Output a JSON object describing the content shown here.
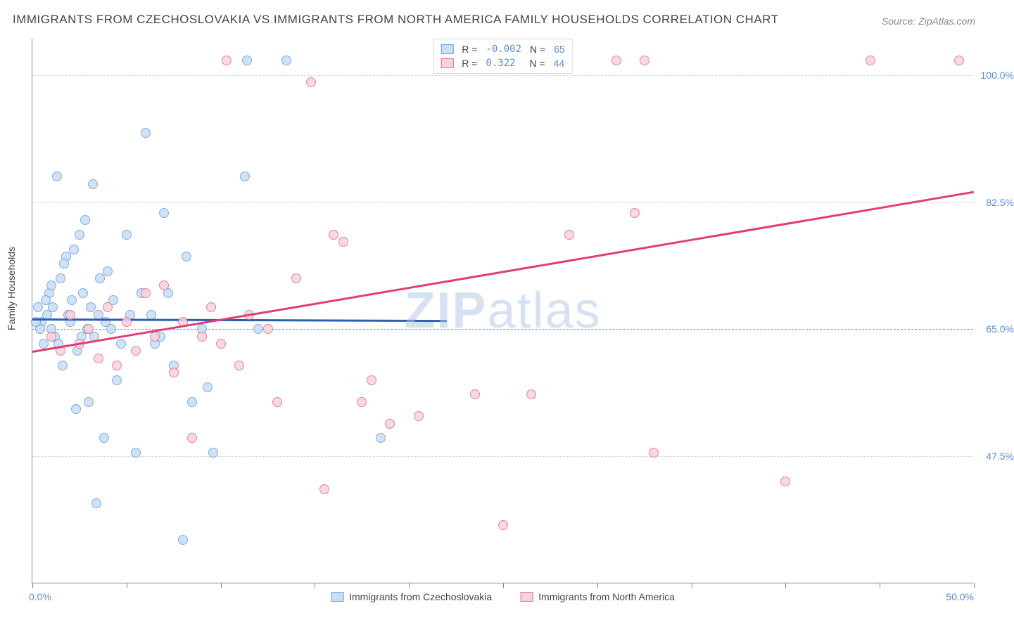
{
  "title": "IMMIGRANTS FROM CZECHOSLOVAKIA VS IMMIGRANTS FROM NORTH AMERICA FAMILY HOUSEHOLDS CORRELATION CHART",
  "source": "Source: ZipAtlas.com",
  "ylabel": "Family Households",
  "watermark_a": "ZIP",
  "watermark_b": "atlas",
  "chart": {
    "type": "scatter",
    "xlim": [
      0,
      50
    ],
    "ylim": [
      30,
      105
    ],
    "ytick_labels": [
      "47.5%",
      "65.0%",
      "82.5%",
      "100.0%"
    ],
    "ytick_values": [
      47.5,
      65.0,
      82.5,
      100.0
    ],
    "xtick_values": [
      0,
      5,
      10,
      15,
      20,
      25,
      30,
      35,
      40,
      45,
      50
    ],
    "xtick_labels_shown": {
      "0": "0.0%",
      "50": "50.0%"
    },
    "background_color": "#ffffff",
    "grid_color": "#cccccc",
    "axis_color": "#888888",
    "marker_radius": 7,
    "series": [
      {
        "name": "Immigrants from Czechoslovakia",
        "fill": "#c9ddf3",
        "stroke": "#6a9edb",
        "R": "-0.002",
        "N": "65",
        "regression": {
          "x1": 0,
          "y1": 66.5,
          "x2": 22,
          "y2": 66.3,
          "color": "#2b5fb5",
          "width": 2.5
        },
        "points": [
          [
            0.5,
            66
          ],
          [
            0.6,
            63
          ],
          [
            0.8,
            67
          ],
          [
            0.9,
            70
          ],
          [
            1.0,
            65
          ],
          [
            1.1,
            68
          ],
          [
            1.2,
            64
          ],
          [
            1.3,
            86
          ],
          [
            1.5,
            72
          ],
          [
            1.6,
            60
          ],
          [
            1.8,
            75
          ],
          [
            2.0,
            66
          ],
          [
            2.1,
            69
          ],
          [
            2.2,
            76
          ],
          [
            2.3,
            54
          ],
          [
            2.5,
            78
          ],
          [
            2.6,
            64
          ],
          [
            2.8,
            80
          ],
          [
            3.0,
            55
          ],
          [
            3.2,
            85
          ],
          [
            3.4,
            41
          ],
          [
            3.5,
            67
          ],
          [
            3.8,
            50
          ],
          [
            4.0,
            73
          ],
          [
            4.2,
            65
          ],
          [
            4.5,
            58
          ],
          [
            5.0,
            78
          ],
          [
            5.5,
            48
          ],
          [
            6.0,
            92
          ],
          [
            6.3,
            67
          ],
          [
            6.5,
            63
          ],
          [
            7.0,
            81
          ],
          [
            7.2,
            70
          ],
          [
            7.5,
            60
          ],
          [
            8.0,
            36
          ],
          [
            8.2,
            75
          ],
          [
            8.5,
            55
          ],
          [
            9.0,
            65
          ],
          [
            9.3,
            57
          ],
          [
            9.6,
            48
          ],
          [
            11.3,
            86
          ],
          [
            11.4,
            102
          ],
          [
            12.0,
            65
          ],
          [
            13.5,
            102
          ],
          [
            18.5,
            50
          ],
          [
            0.7,
            69
          ],
          [
            1.0,
            71
          ],
          [
            1.4,
            63
          ],
          [
            1.7,
            74
          ],
          [
            1.9,
            67
          ],
          [
            2.4,
            62
          ],
          [
            2.7,
            70
          ],
          [
            2.9,
            65
          ],
          [
            3.1,
            68
          ],
          [
            3.3,
            64
          ],
          [
            3.6,
            72
          ],
          [
            3.9,
            66
          ],
          [
            4.3,
            69
          ],
          [
            4.7,
            63
          ],
          [
            5.2,
            67
          ],
          [
            5.8,
            70
          ],
          [
            6.8,
            64
          ],
          [
            0.4,
            65
          ],
          [
            0.3,
            68
          ],
          [
            0.2,
            66
          ]
        ]
      },
      {
        "name": "Immigrants from North America",
        "fill": "#f5d3dc",
        "stroke": "#e56b8f",
        "R": "0.322",
        "N": "44",
        "regression": {
          "x1": 0,
          "y1": 62,
          "x2": 50,
          "y2": 84,
          "color": "#e13d74",
          "width": 2.5
        },
        "points": [
          [
            1.0,
            64
          ],
          [
            1.5,
            62
          ],
          [
            2.0,
            67
          ],
          [
            2.5,
            63
          ],
          [
            3.0,
            65
          ],
          [
            3.5,
            61
          ],
          [
            4.0,
            68
          ],
          [
            4.5,
            60
          ],
          [
            5.0,
            66
          ],
          [
            5.5,
            62
          ],
          [
            6.0,
            70
          ],
          [
            6.5,
            64
          ],
          [
            7.0,
            71
          ],
          [
            7.5,
            59
          ],
          [
            8.0,
            66
          ],
          [
            8.5,
            50
          ],
          [
            9.0,
            64
          ],
          [
            9.5,
            68
          ],
          [
            10.3,
            102
          ],
          [
            11.0,
            60
          ],
          [
            12.5,
            65
          ],
          [
            13.0,
            55
          ],
          [
            14.0,
            72
          ],
          [
            14.8,
            99
          ],
          [
            15.5,
            43
          ],
          [
            16.0,
            78
          ],
          [
            16.5,
            77
          ],
          [
            17.5,
            55
          ],
          [
            18.0,
            58
          ],
          [
            19.0,
            52
          ],
          [
            20.5,
            53
          ],
          [
            23.5,
            56
          ],
          [
            25.0,
            38
          ],
          [
            26.5,
            56
          ],
          [
            28.5,
            78
          ],
          [
            31.0,
            102
          ],
          [
            32.0,
            81
          ],
          [
            32.5,
            102
          ],
          [
            33.0,
            48
          ],
          [
            40.0,
            44
          ],
          [
            44.5,
            102
          ],
          [
            49.2,
            102
          ],
          [
            10.0,
            63
          ],
          [
            11.5,
            67
          ]
        ]
      }
    ]
  },
  "legend_bottom": [
    {
      "label": "Immigrants from Czechoslovakia",
      "fill": "#c9ddf3",
      "stroke": "#6a9edb"
    },
    {
      "label": "Immigrants from North America",
      "fill": "#f5d3dc",
      "stroke": "#e56b8f"
    }
  ]
}
